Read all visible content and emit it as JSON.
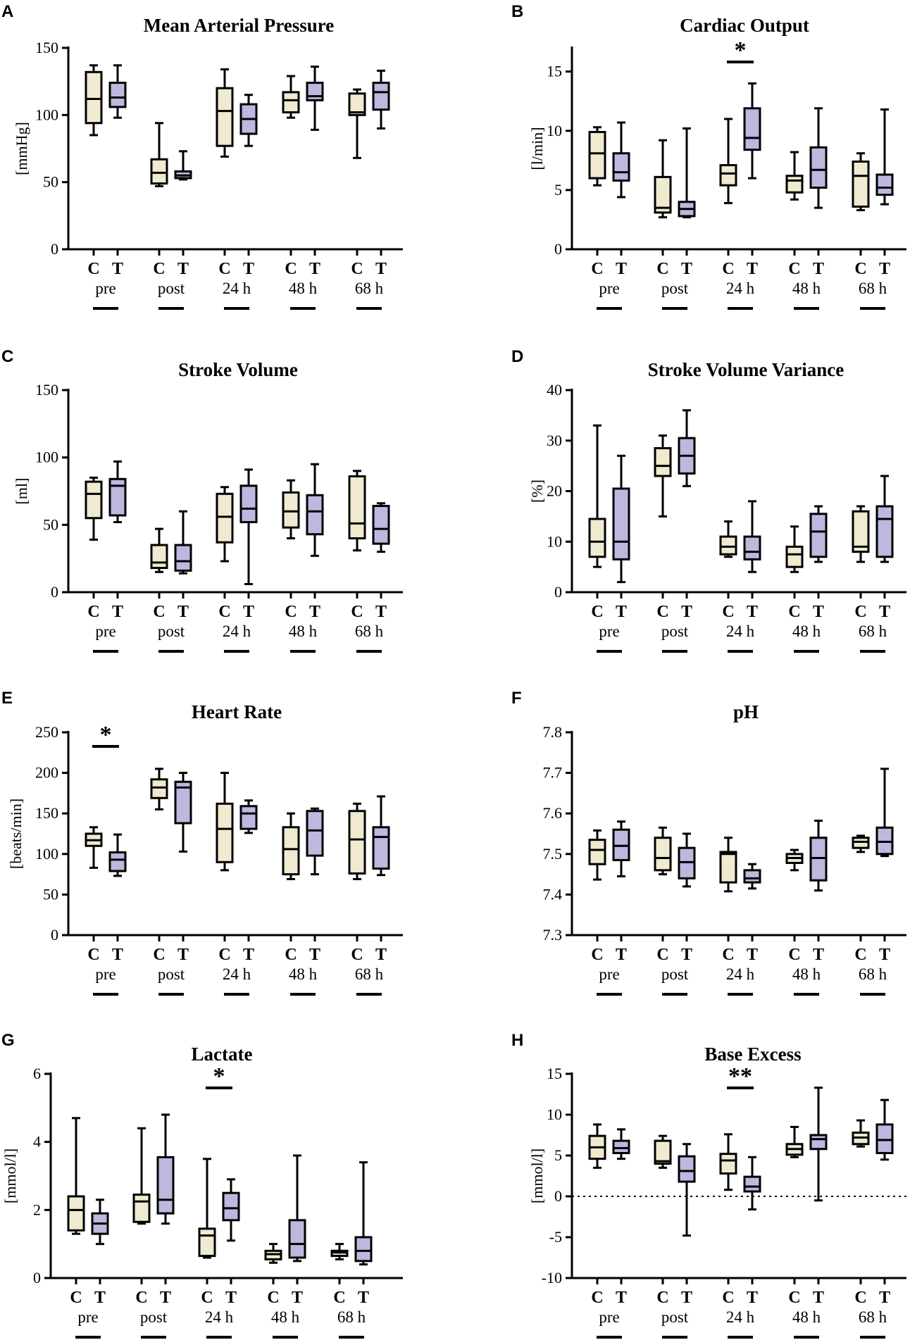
{
  "colors": {
    "C": "#efead0",
    "T": "#bcb8de",
    "stroke": "#000000"
  },
  "chart_data": [
    {
      "type": "box",
      "panel": "A",
      "title": "Mean Arterial Pressure",
      "ylabel": "[mmHg]",
      "ylim": [
        0,
        150
      ],
      "yticks": [
        0,
        50,
        100,
        150
      ],
      "categories": [
        "pre",
        "post",
        "24 h",
        "48 h",
        "68 h"
      ],
      "groups": [
        "C",
        "T"
      ],
      "boxes": [
        {
          "min": 85,
          "q1": 94,
          "median": 112,
          "q3": 132,
          "max": 137
        },
        {
          "min": 98,
          "q1": 106,
          "median": 113,
          "q3": 124,
          "max": 137
        },
        {
          "min": 47,
          "q1": 49,
          "median": 57,
          "q3": 67,
          "max": 94
        },
        {
          "min": 52,
          "q1": 53,
          "median": 55,
          "q3": 58,
          "max": 73
        },
        {
          "min": 69,
          "q1": 77,
          "median": 103,
          "q3": 120,
          "max": 134
        },
        {
          "min": 77,
          "q1": 86,
          "median": 97,
          "q3": 108,
          "max": 115
        },
        {
          "min": 98,
          "q1": 102,
          "median": 111,
          "q3": 117,
          "max": 129
        },
        {
          "min": 89,
          "q1": 111,
          "median": 114,
          "q3": 124,
          "max": 136
        },
        {
          "min": 68,
          "q1": 100,
          "median": 102,
          "q3": 116,
          "max": 119
        },
        {
          "min": 90,
          "q1": 104,
          "median": 117,
          "q3": 124,
          "max": 133
        }
      ],
      "refline": null,
      "significance": []
    },
    {
      "type": "box",
      "panel": "B",
      "title": "Cardiac Output",
      "ylabel": "[l/min]",
      "ylim": [
        0,
        17
      ],
      "yticks": [
        0,
        5,
        10,
        15
      ],
      "categories": [
        "pre",
        "post",
        "24 h",
        "48 h",
        "68 h"
      ],
      "groups": [
        "C",
        "T"
      ],
      "boxes": [
        {
          "min": 5.4,
          "q1": 6.0,
          "median": 8.1,
          "q3": 9.9,
          "max": 10.3
        },
        {
          "min": 4.4,
          "q1": 5.8,
          "median": 6.5,
          "q3": 8.1,
          "max": 10.7
        },
        {
          "min": 2.7,
          "q1": 3.1,
          "median": 3.5,
          "q3": 6.1,
          "max": 9.2
        },
        {
          "min": 2.7,
          "q1": 2.8,
          "median": 3.4,
          "q3": 4.0,
          "max": 10.2
        },
        {
          "min": 3.9,
          "q1": 5.4,
          "median": 6.4,
          "q3": 7.1,
          "max": 11.0
        },
        {
          "min": 6.0,
          "q1": 8.4,
          "median": 9.4,
          "q3": 11.9,
          "max": 14.0
        },
        {
          "min": 4.2,
          "q1": 4.8,
          "median": 5.8,
          "q3": 6.2,
          "max": 8.2
        },
        {
          "min": 3.5,
          "q1": 5.2,
          "median": 6.7,
          "q3": 8.6,
          "max": 11.9
        },
        {
          "min": 3.3,
          "q1": 3.6,
          "median": 6.2,
          "q3": 7.4,
          "max": 8.1
        },
        {
          "min": 3.8,
          "q1": 4.6,
          "median": 5.2,
          "q3": 6.3,
          "max": 11.8
        }
      ],
      "refline": null,
      "significance": [
        {
          "group_index": 2,
          "label": "*"
        }
      ]
    },
    {
      "type": "box",
      "panel": "C",
      "title": "Stroke Volume",
      "ylabel": "[ml]",
      "ylim": [
        0,
        150
      ],
      "yticks": [
        0,
        50,
        100,
        150
      ],
      "categories": [
        "pre",
        "post",
        "24 h",
        "48 h",
        "68 h"
      ],
      "groups": [
        "C",
        "T"
      ],
      "boxes": [
        {
          "min": 39,
          "q1": 55,
          "median": 73,
          "q3": 82,
          "max": 85
        },
        {
          "min": 52,
          "q1": 57,
          "median": 79,
          "q3": 84,
          "max": 97
        },
        {
          "min": 15,
          "q1": 18,
          "median": 22,
          "q3": 35,
          "max": 47
        },
        {
          "min": 14,
          "q1": 16,
          "median": 23,
          "q3": 35,
          "max": 60
        },
        {
          "min": 23,
          "q1": 37,
          "median": 56,
          "q3": 73,
          "max": 78
        },
        {
          "min": 6,
          "q1": 52,
          "median": 62,
          "q3": 79,
          "max": 91
        },
        {
          "min": 40,
          "q1": 48,
          "median": 60,
          "q3": 74,
          "max": 83
        },
        {
          "min": 27,
          "q1": 43,
          "median": 60,
          "q3": 72,
          "max": 95
        },
        {
          "min": 31,
          "q1": 40,
          "median": 51,
          "q3": 86,
          "max": 90
        },
        {
          "min": 30,
          "q1": 36,
          "median": 47,
          "q3": 64,
          "max": 66
        }
      ],
      "refline": null,
      "significance": []
    },
    {
      "type": "box",
      "panel": "D",
      "title": "Stroke Volume Variance",
      "ylabel": "[%]",
      "ylim": [
        0,
        40
      ],
      "yticks": [
        0,
        10,
        20,
        30,
        40
      ],
      "categories": [
        "pre",
        "post",
        "24 h",
        "48 h",
        "68 h"
      ],
      "groups": [
        "C",
        "T"
      ],
      "boxes": [
        {
          "min": 5,
          "q1": 7,
          "median": 10,
          "q3": 14.5,
          "max": 33
        },
        {
          "min": 2,
          "q1": 6.5,
          "median": 10,
          "q3": 20.5,
          "max": 27
        },
        {
          "min": 15,
          "q1": 23,
          "median": 25,
          "q3": 28.5,
          "max": 31
        },
        {
          "min": 21,
          "q1": 23.5,
          "median": 27,
          "q3": 30.5,
          "max": 36
        },
        {
          "min": 7,
          "q1": 7.5,
          "median": 9,
          "q3": 11,
          "max": 14
        },
        {
          "min": 4,
          "q1": 6.5,
          "median": 8,
          "q3": 11,
          "max": 18
        },
        {
          "min": 4,
          "q1": 5,
          "median": 7.5,
          "q3": 9,
          "max": 13
        },
        {
          "min": 6,
          "q1": 7,
          "median": 12,
          "q3": 15.5,
          "max": 17
        },
        {
          "min": 6,
          "q1": 8,
          "median": 9,
          "q3": 16,
          "max": 17
        },
        {
          "min": 6,
          "q1": 7,
          "median": 14.5,
          "q3": 17,
          "max": 23
        }
      ],
      "refline": null,
      "significance": []
    },
    {
      "type": "box",
      "panel": "E",
      "title": "Heart Rate",
      "ylabel": "[beats/min]",
      "ylim": [
        0,
        250
      ],
      "yticks": [
        0,
        50,
        100,
        150,
        200,
        250
      ],
      "categories": [
        "pre",
        "post",
        "24 h",
        "48 h",
        "68 h"
      ],
      "groups": [
        "C",
        "T"
      ],
      "boxes": [
        {
          "min": 83,
          "q1": 110,
          "median": 117,
          "q3": 125,
          "max": 133
        },
        {
          "min": 73,
          "q1": 79,
          "median": 93,
          "q3": 102,
          "max": 124
        },
        {
          "min": 155,
          "q1": 169,
          "median": 182,
          "q3": 192,
          "max": 205
        },
        {
          "min": 103,
          "q1": 138,
          "median": 182,
          "q3": 189,
          "max": 200
        },
        {
          "min": 80,
          "q1": 90,
          "median": 131,
          "q3": 162,
          "max": 200
        },
        {
          "min": 126,
          "q1": 131,
          "median": 150,
          "q3": 159,
          "max": 166
        },
        {
          "min": 69,
          "q1": 75,
          "median": 106,
          "q3": 133,
          "max": 150
        },
        {
          "min": 75,
          "q1": 98,
          "median": 129,
          "q3": 153,
          "max": 156
        },
        {
          "min": 69,
          "q1": 76,
          "median": 118,
          "q3": 153,
          "max": 162
        },
        {
          "min": 74,
          "q1": 82,
          "median": 121,
          "q3": 133,
          "max": 171
        }
      ],
      "refline": null,
      "significance": [
        {
          "group_index": 0,
          "label": "*"
        }
      ]
    },
    {
      "type": "box",
      "panel": "F",
      "title": "pH",
      "ylabel": "",
      "ylim": [
        7.3,
        7.8
      ],
      "yticks": [
        7.3,
        7.4,
        7.5,
        7.6,
        7.7,
        7.8
      ],
      "yticklabels": [
        "7.3",
        "7.4",
        "7.5",
        "7.6",
        "7.7",
        "7.8"
      ],
      "categories": [
        "pre",
        "post",
        "24 h",
        "48 h",
        "68 h"
      ],
      "groups": [
        "C",
        "T"
      ],
      "boxes": [
        {
          "min": 7.437,
          "q1": 7.475,
          "median": 7.51,
          "q3": 7.535,
          "max": 7.558
        },
        {
          "min": 7.445,
          "q1": 7.485,
          "median": 7.52,
          "q3": 7.56,
          "max": 7.58
        },
        {
          "min": 7.45,
          "q1": 7.46,
          "median": 7.49,
          "q3": 7.54,
          "max": 7.565
        },
        {
          "min": 7.42,
          "q1": 7.44,
          "median": 7.48,
          "q3": 7.515,
          "max": 7.55
        },
        {
          "min": 7.408,
          "q1": 7.43,
          "median": 7.5,
          "q3": 7.505,
          "max": 7.54
        },
        {
          "min": 7.415,
          "q1": 7.43,
          "median": 7.44,
          "q3": 7.46,
          "max": 7.475
        },
        {
          "min": 7.46,
          "q1": 7.478,
          "median": 7.49,
          "q3": 7.5,
          "max": 7.51
        },
        {
          "min": 7.41,
          "q1": 7.435,
          "median": 7.49,
          "q3": 7.54,
          "max": 7.582
        },
        {
          "min": 7.505,
          "q1": 7.515,
          "median": 7.53,
          "q3": 7.54,
          "max": 7.545
        },
        {
          "min": 7.495,
          "q1": 7.5,
          "median": 7.53,
          "q3": 7.565,
          "max": 7.71
        }
      ],
      "refline": null,
      "significance": []
    },
    {
      "type": "box",
      "panel": "G",
      "title": "Lactate",
      "ylabel": "[mmol/l]",
      "ylim": [
        0,
        6
      ],
      "yticks": [
        0,
        2,
        4,
        6
      ],
      "categories": [
        "pre",
        "post",
        "24 h",
        "48 h",
        "68 h"
      ],
      "groups": [
        "C",
        "T"
      ],
      "boxes": [
        {
          "min": 1.3,
          "q1": 1.4,
          "median": 2.0,
          "q3": 2.4,
          "max": 4.7
        },
        {
          "min": 1.0,
          "q1": 1.3,
          "median": 1.6,
          "q3": 1.9,
          "max": 2.3
        },
        {
          "min": 1.6,
          "q1": 1.65,
          "median": 2.25,
          "q3": 2.45,
          "max": 4.4
        },
        {
          "min": 1.6,
          "q1": 1.9,
          "median": 2.3,
          "q3": 3.55,
          "max": 4.8
        },
        {
          "min": 0.6,
          "q1": 0.65,
          "median": 1.25,
          "q3": 1.45,
          "max": 3.5
        },
        {
          "min": 1.1,
          "q1": 1.7,
          "median": 2.05,
          "q3": 2.5,
          "max": 2.9
        },
        {
          "min": 0.45,
          "q1": 0.55,
          "median": 0.7,
          "q3": 0.8,
          "max": 1.0
        },
        {
          "min": 0.5,
          "q1": 0.6,
          "median": 1.0,
          "q3": 1.7,
          "max": 3.6
        },
        {
          "min": 0.55,
          "q1": 0.65,
          "median": 0.75,
          "q3": 0.8,
          "max": 1.0
        },
        {
          "min": 0.4,
          "q1": 0.5,
          "median": 0.8,
          "q3": 1.2,
          "max": 3.4
        }
      ],
      "refline": null,
      "significance": [
        {
          "group_index": 2,
          "label": "*"
        }
      ]
    },
    {
      "type": "box",
      "panel": "H",
      "title": "Base  Excess",
      "ylabel": "[mmol/l]",
      "ylim": [
        -10,
        15
      ],
      "yticks": [
        -10,
        -5,
        0,
        5,
        10,
        15
      ],
      "categories": [
        "pre",
        "post",
        "24 h",
        "48 h",
        "68 h"
      ],
      "groups": [
        "C",
        "T"
      ],
      "boxes": [
        {
          "min": 3.5,
          "q1": 4.6,
          "median": 6.0,
          "q3": 7.4,
          "max": 8.8
        },
        {
          "min": 4.6,
          "q1": 5.3,
          "median": 5.9,
          "q3": 6.8,
          "max": 8.2
        },
        {
          "min": 3.5,
          "q1": 4.0,
          "median": 4.3,
          "q3": 6.8,
          "max": 7.4
        },
        {
          "min": -4.8,
          "q1": 1.8,
          "median": 3.1,
          "q3": 4.9,
          "max": 6.4
        },
        {
          "min": 0.8,
          "q1": 2.8,
          "median": 4.4,
          "q3": 5.2,
          "max": 7.6
        },
        {
          "min": -1.6,
          "q1": 0.6,
          "median": 1.2,
          "q3": 2.4,
          "max": 4.8
        },
        {
          "min": 4.8,
          "q1": 5.1,
          "median": 5.8,
          "q3": 6.4,
          "max": 8.5
        },
        {
          "min": -0.5,
          "q1": 5.8,
          "median": 7.0,
          "q3": 7.5,
          "max": 13.3
        },
        {
          "min": 6.1,
          "q1": 6.4,
          "median": 7.2,
          "q3": 7.8,
          "max": 9.3
        },
        {
          "min": 4.5,
          "q1": 5.3,
          "median": 6.9,
          "q3": 8.8,
          "max": 11.8
        }
      ],
      "refline": 0,
      "significance": [
        {
          "group_index": 2,
          "label": "**"
        }
      ]
    }
  ]
}
